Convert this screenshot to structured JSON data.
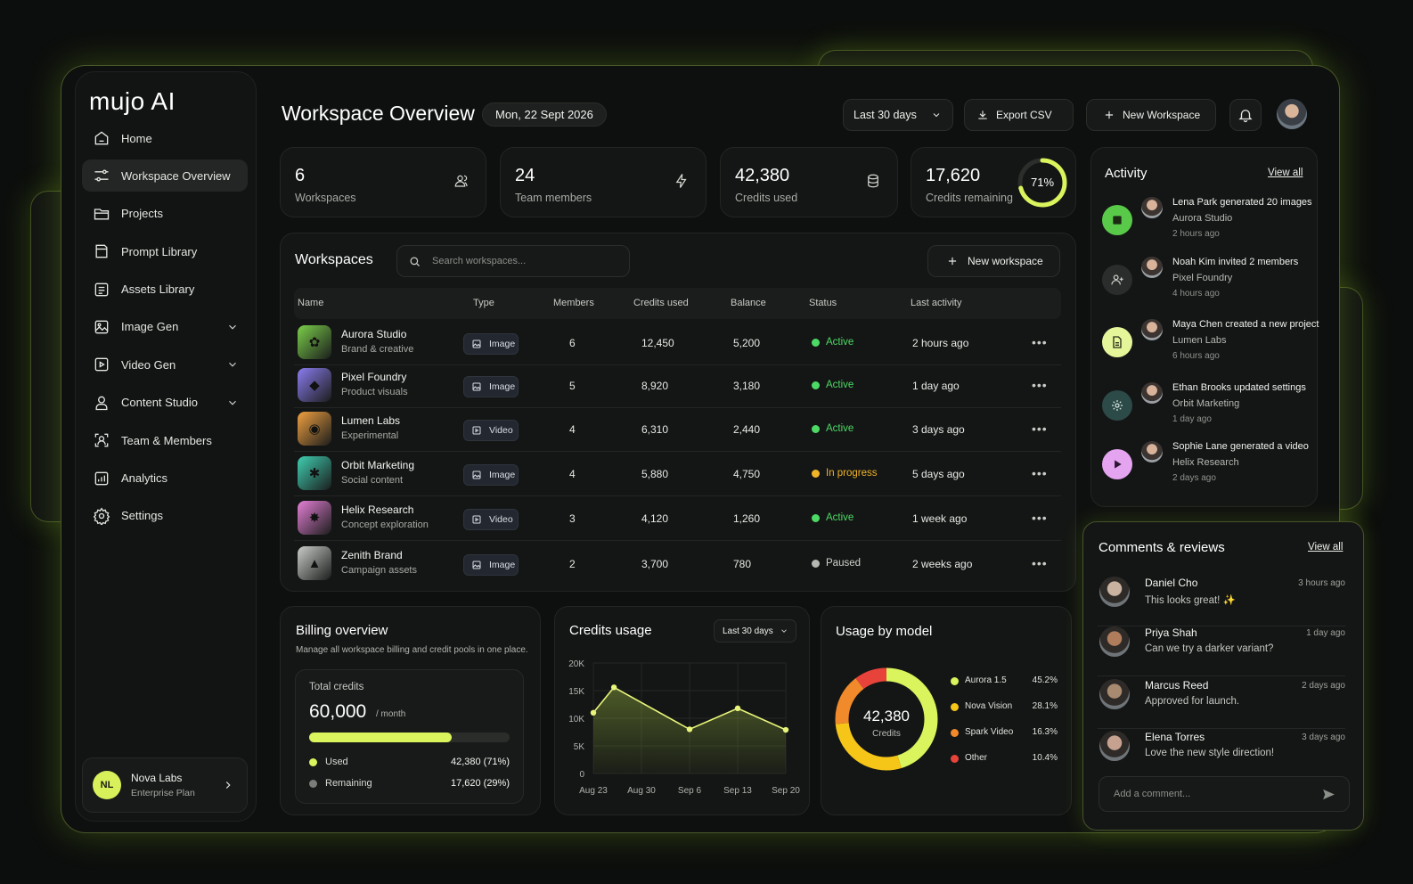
{
  "app": {
    "logo": "mujo AI"
  },
  "sidebar": {
    "items": [
      {
        "label": "Home",
        "icon": "home-icon"
      },
      {
        "label": "Workspace Overview",
        "icon": "sliders-icon",
        "active": true
      },
      {
        "label": "Projects",
        "icon": "folder-icon"
      },
      {
        "label": "Prompt Library",
        "icon": "book-icon"
      },
      {
        "label": "Assets Library",
        "icon": "list-icon"
      },
      {
        "label": "Image Gen",
        "icon": "image-icon",
        "expandable": true
      },
      {
        "label": "Video Gen",
        "icon": "video-icon",
        "expandable": true
      },
      {
        "label": "Content Studio",
        "icon": "user-icon",
        "expandable": true
      },
      {
        "label": "Team & Members",
        "icon": "team-icon"
      },
      {
        "label": "Analytics",
        "icon": "analytics-icon"
      },
      {
        "label": "Settings",
        "icon": "gear-icon"
      }
    ],
    "user": {
      "initials": "NL",
      "name": "Nova Labs",
      "plan": "Enterprise Plan"
    }
  },
  "header": {
    "title": "Workspace Overview",
    "date": "Mon, 22 Sept 2026",
    "range": "Last 30 days",
    "export_label": "Export CSV",
    "new_workspace_label": "New Workspace"
  },
  "stats": [
    {
      "value": "6",
      "label": "Workspaces",
      "icon": "users-icon"
    },
    {
      "value": "24",
      "label": "Team members",
      "icon": "lightning-icon"
    },
    {
      "value": "42,380",
      "label": "Credits used",
      "icon": "database-icon"
    },
    {
      "value": "17,620",
      "label": "Credits remaining",
      "ring": "71%",
      "ring_fraction": 0.71
    }
  ],
  "workspaces": {
    "title": "Workspaces",
    "search_placeholder": "Search workspaces...",
    "new_label": "New workspace",
    "columns": [
      "Name",
      "Type",
      "Members",
      "Credits used",
      "Balance",
      "Status",
      "Last activity"
    ],
    "rows": [
      {
        "name": "Aurora Studio",
        "sub": "Brand & creative",
        "type": "Image",
        "members": "6",
        "credits": "12,450",
        "balance": "5,200",
        "status": "Active",
        "last": "2 hours ago",
        "status_color": "#4cd964",
        "thumb": "#7bcf4a"
      },
      {
        "name": "Pixel Foundry",
        "sub": "Product visuals",
        "type": "Image",
        "members": "5",
        "credits": "8,920",
        "balance": "3,180",
        "status": "Active",
        "last": "1 day ago",
        "status_color": "#4cd964",
        "thumb": "#8b7cf0"
      },
      {
        "name": "Lumen Labs",
        "sub": "Experimental",
        "type": "Video",
        "members": "4",
        "credits": "6,310",
        "balance": "2,440",
        "status": "Active",
        "last": "3 days ago",
        "status_color": "#4cd964",
        "thumb": "#f0a040"
      },
      {
        "name": "Orbit Marketing",
        "sub": "Social content",
        "type": "Image",
        "members": "4",
        "credits": "5,880",
        "balance": "4,750",
        "status": "In progress",
        "last": "5 days ago",
        "status_color": "#f0b429",
        "thumb": "#3fcfb2"
      },
      {
        "name": "Helix Research",
        "sub": "Concept exploration",
        "type": "Video",
        "members": "3",
        "credits": "4,120",
        "balance": "1,260",
        "status": "Active",
        "last": "1 week ago",
        "status_color": "#4cd964",
        "thumb": "#e57fd6"
      },
      {
        "name": "Zenith Brand",
        "sub": "Campaign assets",
        "type": "Image",
        "members": "2",
        "credits": "3,700",
        "balance": "780",
        "status": "Paused",
        "last": "2 weeks ago",
        "status_color": "#b5b8b3",
        "thumb": "#c9ccc8"
      }
    ]
  },
  "billing": {
    "title": "Billing overview",
    "subtitle": "Manage all workspace billing and credit pools in one place.",
    "total_label": "Total credits",
    "total_value": "60,000",
    "per": "/ month",
    "used_fraction": 0.71,
    "used_label": "Used",
    "used_value": "42,380 (71%)",
    "remaining_label": "Remaining",
    "remaining_value": "17,620 (29%)"
  },
  "credits_usage": {
    "title": "Credits usage",
    "range": "Last 30 days"
  },
  "chart_data": {
    "type": "area",
    "title": "Credits usage",
    "categories": [
      "Aug 23",
      "Aug 30",
      "Sep 6",
      "Sep 13",
      "Sep 20"
    ],
    "x": [
      "Aug 23",
      "Aug 26",
      "Sep 6",
      "Sep 13",
      "Sep 20"
    ],
    "x_positions": [
      0,
      3,
      14,
      21,
      28
    ],
    "values": [
      11000,
      15600,
      8000,
      11800,
      7900
    ],
    "yticks": [
      "20K",
      "15K",
      "10K",
      "5K",
      "0"
    ],
    "ylim": [
      0,
      20000
    ],
    "grid": true
  },
  "usage_by_model": {
    "title": "Usage by model",
    "center_value": "42,380",
    "center_label": "Credits",
    "models": [
      {
        "name": "Aurora 1.5",
        "pct": "45.2%",
        "value": 45.2,
        "color": "#d9f45c"
      },
      {
        "name": "Nova Vision",
        "pct": "28.1%",
        "value": 28.1,
        "color": "#f5c518"
      },
      {
        "name": "Spark Video",
        "pct": "16.3%",
        "value": 16.3,
        "color": "#f08a2a"
      },
      {
        "name": "Other",
        "pct": "10.4%",
        "value": 10.4,
        "color": "#e8433a"
      }
    ]
  },
  "activity": {
    "title": "Activity",
    "view_all": "View all",
    "items": [
      {
        "text": "Lena Park generated 20 images",
        "sub": "Aurora Studio",
        "time": "2 hours ago",
        "icon": "image-icon",
        "bg": "#59c94a"
      },
      {
        "text": "Noah Kim invited 2 members",
        "sub": "Pixel Foundry",
        "time": "4 hours ago",
        "icon": "user-plus-icon",
        "bg": "#2a2d2b"
      },
      {
        "text": "Maya Chen created a new project",
        "sub": "Lumen Labs",
        "time": "6 hours ago",
        "icon": "document-icon",
        "bg": "#e4f59a"
      },
      {
        "text": "Ethan Brooks updated settings",
        "sub": "Orbit Marketing",
        "time": "1 day ago",
        "icon": "gear-icon",
        "bg": "#2c4a48"
      },
      {
        "text": "Sophie Lane generated a video",
        "sub": "Helix Research",
        "time": "2 days ago",
        "icon": "play-icon",
        "bg": "#e5a4f0"
      }
    ]
  },
  "comments": {
    "title": "Comments & reviews",
    "view_all": "View all",
    "placeholder": "Add a comment...",
    "items": [
      {
        "name": "Daniel Cho",
        "msg": "This looks great! ✨",
        "time": "3 hours ago"
      },
      {
        "name": "Priya Shah",
        "msg": "Can we try a darker variant?",
        "time": "1 day ago"
      },
      {
        "name": "Marcus Reed",
        "msg": "Approved for launch.",
        "time": "2 days ago"
      },
      {
        "name": "Elena Torres",
        "msg": "Love the new style direction!",
        "time": "3 days ago"
      }
    ]
  }
}
